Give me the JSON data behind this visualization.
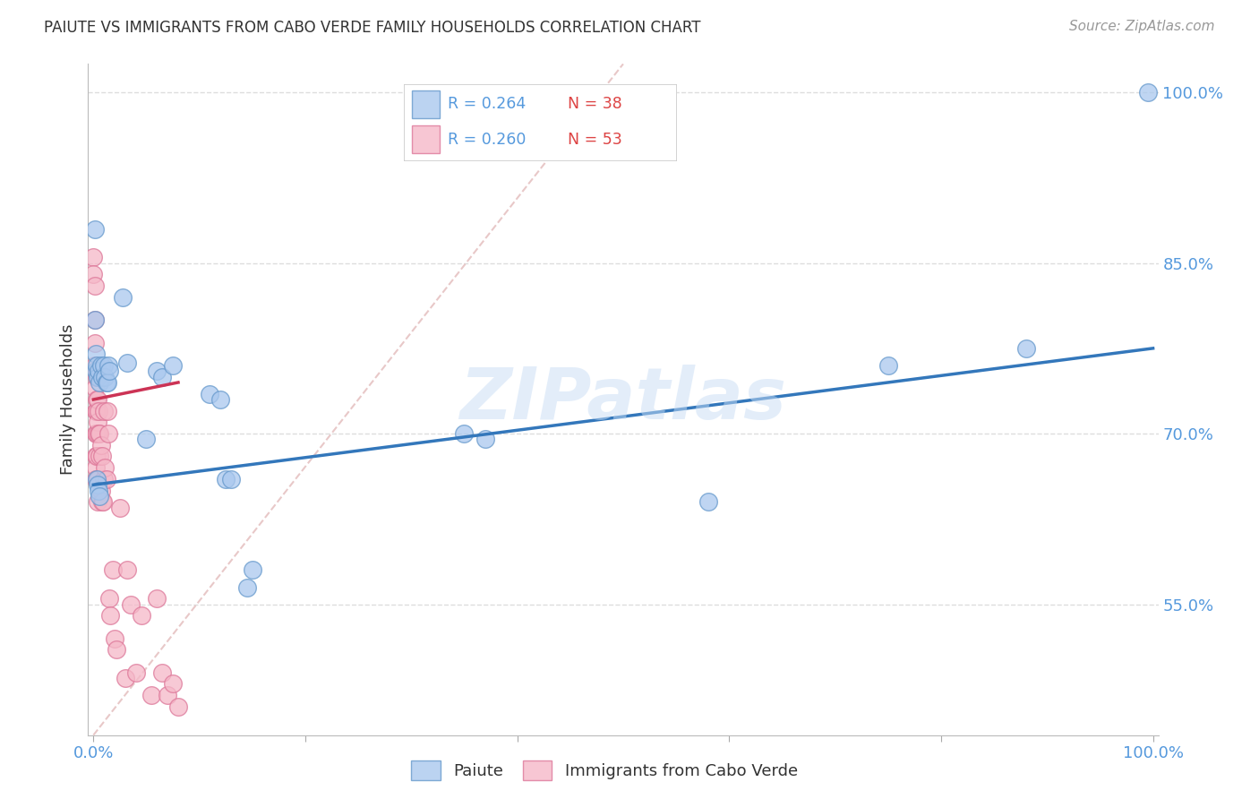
{
  "title": "PAIUTE VS IMMIGRANTS FROM CABO VERDE FAMILY HOUSEHOLDS CORRELATION CHART",
  "source": "Source: ZipAtlas.com",
  "ylabel": "Family Households",
  "legend_label_1": "Paiute",
  "legend_label_2": "Immigrants from Cabo Verde",
  "R1": "0.264",
  "N1": "38",
  "R2": "0.260",
  "N2": "53",
  "color_blue_fill": "#aac8ee",
  "color_blue_edge": "#6699cc",
  "color_pink_fill": "#f5b8c8",
  "color_pink_edge": "#dd7799",
  "color_trend_blue": "#3377bb",
  "color_trend_pink": "#cc3355",
  "color_diagonal": "#e8c8c8",
  "color_axis_text": "#5599dd",
  "color_title": "#333333",
  "color_source": "#999999",
  "color_watermark": "#c8ddf5",
  "color_grid": "#dddddd",
  "watermark": "ZIPatlas",
  "xlim": [
    -0.005,
    1.005
  ],
  "ylim": [
    0.435,
    1.025
  ],
  "paiute_x": [
    0.001,
    0.001,
    0.002,
    0.002,
    0.003,
    0.004,
    0.005,
    0.006,
    0.007,
    0.008,
    0.01,
    0.011,
    0.012,
    0.013,
    0.014,
    0.015,
    0.028,
    0.032,
    0.05,
    0.06,
    0.065,
    0.075,
    0.11,
    0.12,
    0.125,
    0.13,
    0.145,
    0.15,
    0.35,
    0.37,
    0.58,
    0.75,
    0.88,
    0.995,
    0.003,
    0.004,
    0.005,
    0.006
  ],
  "paiute_y": [
    0.88,
    0.8,
    0.77,
    0.755,
    0.76,
    0.75,
    0.755,
    0.745,
    0.76,
    0.75,
    0.76,
    0.75,
    0.745,
    0.745,
    0.76,
    0.755,
    0.82,
    0.762,
    0.695,
    0.755,
    0.75,
    0.76,
    0.735,
    0.73,
    0.66,
    0.66,
    0.565,
    0.58,
    0.7,
    0.695,
    0.64,
    0.76,
    0.775,
    1.0,
    0.66,
    0.655,
    0.65,
    0.645
  ],
  "cabo_verde_x": [
    0.0,
    0.0,
    0.001,
    0.001,
    0.001,
    0.001,
    0.001,
    0.002,
    0.002,
    0.002,
    0.002,
    0.002,
    0.003,
    0.003,
    0.003,
    0.003,
    0.003,
    0.004,
    0.004,
    0.004,
    0.004,
    0.005,
    0.005,
    0.006,
    0.006,
    0.007,
    0.007,
    0.008,
    0.008,
    0.009,
    0.01,
    0.01,
    0.011,
    0.012,
    0.013,
    0.014,
    0.015,
    0.016,
    0.018,
    0.02,
    0.022,
    0.025,
    0.03,
    0.032,
    0.035,
    0.04,
    0.045,
    0.055,
    0.06,
    0.065,
    0.07,
    0.075,
    0.08
  ],
  "cabo_verde_y": [
    0.855,
    0.84,
    0.83,
    0.8,
    0.78,
    0.76,
    0.74,
    0.72,
    0.7,
    0.68,
    0.67,
    0.66,
    0.75,
    0.73,
    0.72,
    0.7,
    0.68,
    0.73,
    0.71,
    0.66,
    0.64,
    0.72,
    0.7,
    0.7,
    0.68,
    0.69,
    0.65,
    0.68,
    0.64,
    0.64,
    0.72,
    0.66,
    0.67,
    0.66,
    0.72,
    0.7,
    0.555,
    0.54,
    0.58,
    0.52,
    0.51,
    0.635,
    0.485,
    0.58,
    0.55,
    0.49,
    0.54,
    0.47,
    0.555,
    0.49,
    0.47,
    0.48,
    0.46
  ]
}
